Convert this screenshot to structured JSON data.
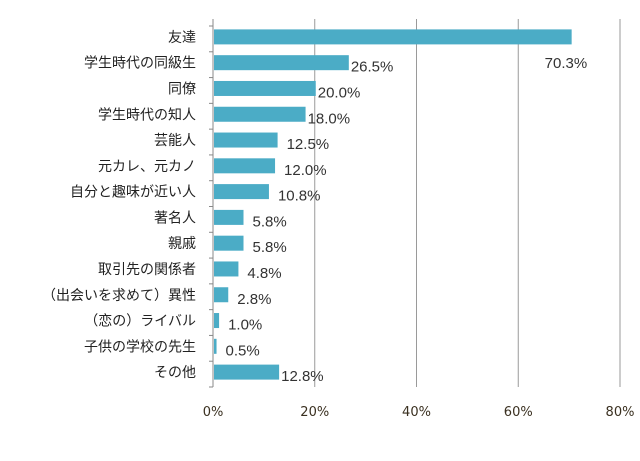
{
  "chart_data": {
    "type": "bar",
    "orientation": "horizontal",
    "categories": [
      "友達",
      "学生時代の同級生",
      "同僚",
      "学生時代の知人",
      "芸能人",
      "元カレ、元カノ",
      "自分と趣味が近い人",
      "著名人",
      "親戚",
      "取引先の関係者",
      "（出会いを求めて）異性",
      "（恋の）ライバル",
      "子供の学校の先生",
      "その他"
    ],
    "values": [
      70.3,
      26.5,
      20.0,
      18.0,
      12.5,
      12.0,
      10.8,
      5.8,
      5.8,
      4.8,
      2.8,
      1.0,
      0.5,
      12.8
    ],
    "data_labels": [
      "70.3%",
      "26.5%",
      "20.0%",
      "18.0%",
      "12.5%",
      "12.0%",
      "10.8%",
      "5.8%",
      "5.8%",
      "4.8%",
      "2.8%",
      "1.0%",
      "0.5%",
      "12.8%"
    ],
    "xlim": [
      0,
      80
    ],
    "x_ticks": [
      "0%",
      "20%",
      "40%",
      "60%",
      "80%"
    ],
    "grid": true,
    "bar_color": "#4bacc6",
    "title": "",
    "xlabel": "",
    "ylabel": ""
  }
}
